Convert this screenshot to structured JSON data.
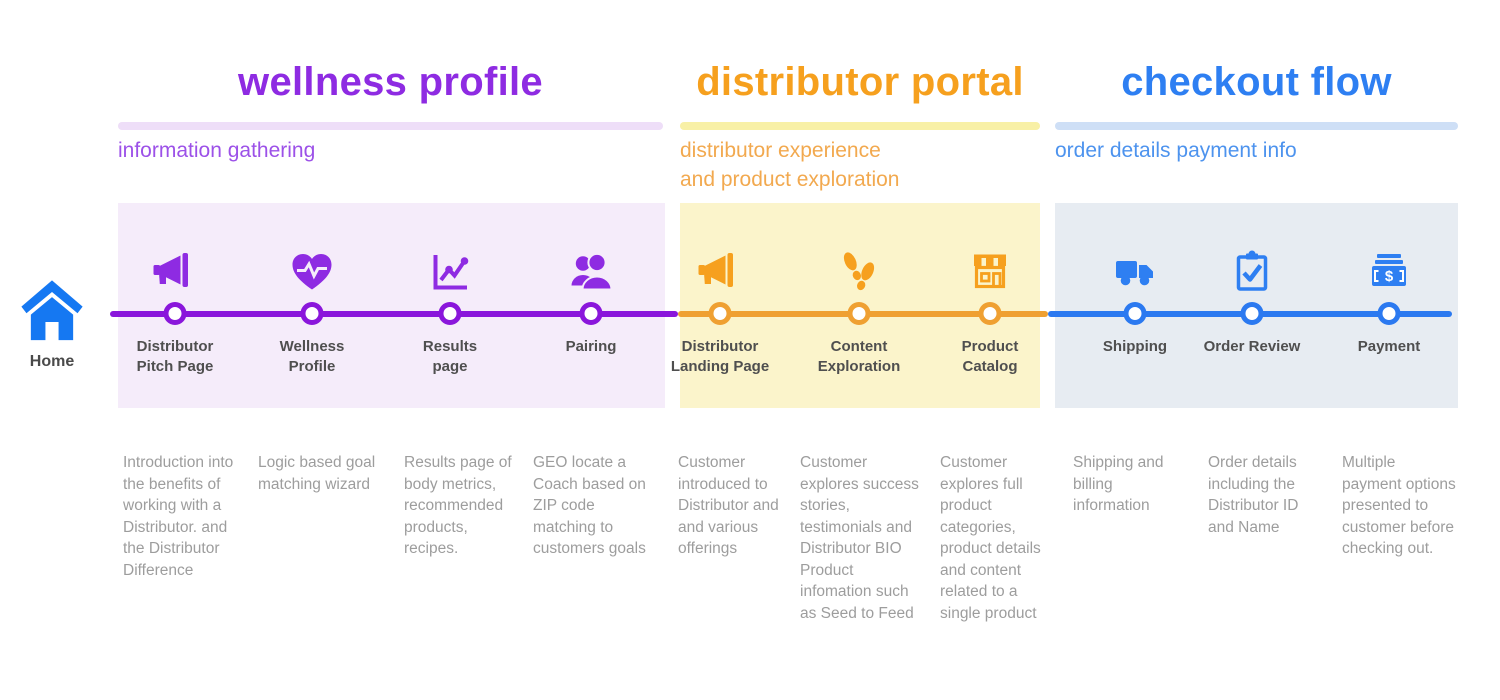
{
  "page": {
    "background": "#FFFFFF"
  },
  "home": {
    "label": "Home",
    "icon": "home-icon",
    "color": "#1578F2"
  },
  "phases": [
    {
      "id": "wellness-profile",
      "title": "wellness profile",
      "subtitle": "information gathering",
      "colors": {
        "accent": "#8E2BE2",
        "subtitle": "#9C51E8",
        "underline": "#EEDEF8",
        "panel": "#F5ECFA",
        "line": "#8A16DB"
      },
      "steps": [
        {
          "label": "Distributor\nPitch Page",
          "icon": "megaphone-icon",
          "description": "Introduction into\nthe benefits of\nworking with a\nDistributor. and\nthe Distributor\nDifference"
        },
        {
          "label": "Wellness\nProfile",
          "icon": "heart-pulse-icon",
          "description": "Logic based goal\nmatching wizard"
        },
        {
          "label": "Results\npage",
          "icon": "line-chart-icon",
          "description": "Results page of\nbody metrics,\nrecommended\nproducts,\nrecipes."
        },
        {
          "label": "Pairing",
          "icon": "people-icon",
          "description": "GEO locate a\nCoach based on\nZIP code\nmatching to\ncustomers goals"
        }
      ]
    },
    {
      "id": "distributor-portal",
      "title": "distributor portal",
      "subtitle": "distributor experience\nand product exploration",
      "colors": {
        "accent": "#F6A01E",
        "subtitle": "#F2A94F",
        "underline": "#F8F0A6",
        "panel": "#FBF4CB",
        "line": "#EFA032"
      },
      "steps": [
        {
          "label": "Distributor\nLanding Page",
          "icon": "megaphone-icon",
          "description": "Customer\nintroduced to\nDistributor and\nand various\nofferings"
        },
        {
          "label": "Content\nExploration",
          "icon": "footprints-icon",
          "description": "Customer\nexplores success\nstories,\ntestimonials and\nDistributor BIO\nProduct\ninfomation such\nas Seed to Feed"
        },
        {
          "label": "Product\nCatalog",
          "icon": "storefront-icon",
          "description": "Customer\nexplores full\nproduct\ncategories,\nproduct details\nand content\nrelated to a\nsingle product"
        }
      ]
    },
    {
      "id": "checkout-flow",
      "title": "checkout flow",
      "subtitle": "order details payment info",
      "colors": {
        "accent": "#2E7FF2",
        "subtitle": "#4D93EE",
        "underline": "#CEDFF6",
        "panel": "#E7ECF2",
        "line": "#2B79F0"
      },
      "steps": [
        {
          "label": "Shipping",
          "icon": "truck-icon",
          "description": "Shipping and\nbilling\ninformation"
        },
        {
          "label": "Order Review",
          "icon": "clipboard-check-icon",
          "description": "Order details\nincluding the\nDistributor ID\nand Name"
        },
        {
          "label": "Payment",
          "icon": "money-icon",
          "description": "Multiple\npayment options\npresented to\ncustomer before\nchecking out."
        }
      ]
    }
  ]
}
